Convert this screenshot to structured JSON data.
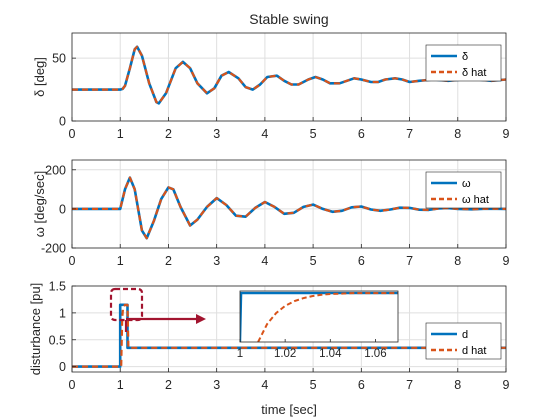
{
  "title": "Stable swing",
  "colors": {
    "actual": "#0072BD",
    "estimate": "#D95319",
    "callout": "#A2142F",
    "grid": "#DFDFDF",
    "axis": "#262626"
  },
  "chart_data": [
    {
      "type": "line",
      "title": "Stable swing",
      "xlabel": "",
      "ylabel": "δ [deg]",
      "xlim": [
        0,
        9
      ],
      "ylim": [
        0,
        70
      ],
      "xticks": [
        "0",
        "1",
        "2",
        "3",
        "4",
        "5",
        "6",
        "7",
        "8",
        "9"
      ],
      "yticks": [
        "0",
        "50"
      ],
      "ytick_values": [
        0,
        50
      ],
      "grid": true,
      "legend_position": "top-right",
      "series": [
        {
          "name": "δ",
          "style": "solid",
          "x": [
            0,
            1,
            1.05,
            1.1,
            1.2,
            1.3,
            1.35,
            1.45,
            1.6,
            1.75,
            1.8,
            1.95,
            2.15,
            2.3,
            2.45,
            2.6,
            2.8,
            2.95,
            3.1,
            3.25,
            3.45,
            3.6,
            3.75,
            3.9,
            4.05,
            4.25,
            4.4,
            4.55,
            4.7,
            4.9,
            5.05,
            5.2,
            5.35,
            5.55,
            5.7,
            5.85,
            6.0,
            6.2,
            6.35,
            6.5,
            6.7,
            6.85,
            7.0,
            7.2,
            7.5,
            7.8,
            8.1,
            8.4,
            8.7,
            9
          ],
          "y": [
            25,
            25,
            25.5,
            28,
            42,
            57,
            59,
            52,
            30,
            15,
            14,
            22,
            42,
            47,
            42,
            30,
            22,
            26,
            36,
            39,
            34,
            27,
            25,
            29,
            35,
            36,
            32,
            29,
            29,
            33,
            35,
            33,
            30,
            30,
            32,
            34,
            33,
            31,
            31,
            33,
            34,
            33,
            31,
            32,
            33,
            32,
            33,
            33,
            32,
            33
          ]
        },
        {
          "name": "δ hat",
          "style": "dashed",
          "x": [
            0,
            1,
            1.05,
            1.1,
            1.2,
            1.3,
            1.35,
            1.45,
            1.6,
            1.75,
            1.8,
            1.95,
            2.15,
            2.3,
            2.45,
            2.6,
            2.8,
            2.95,
            3.1,
            3.25,
            3.45,
            3.6,
            3.75,
            3.9,
            4.05,
            4.25,
            4.4,
            4.55,
            4.7,
            4.9,
            5.05,
            5.2,
            5.35,
            5.55,
            5.7,
            5.85,
            6.0,
            6.2,
            6.35,
            6.5,
            6.7,
            6.85,
            7.0,
            7.2,
            7.5,
            7.8,
            8.1,
            8.4,
            8.7,
            9
          ],
          "y": [
            25,
            25,
            25.5,
            28,
            42,
            57,
            59,
            52,
            30,
            15,
            14,
            22,
            42,
            47,
            42,
            30,
            22,
            26,
            36,
            39,
            34,
            27,
            25,
            29,
            35,
            36,
            32,
            29,
            29,
            33,
            35,
            33,
            30,
            30,
            32,
            34,
            33,
            31,
            31,
            33,
            34,
            33,
            31,
            32,
            33,
            32,
            33,
            33,
            32,
            33
          ]
        }
      ]
    },
    {
      "type": "line",
      "title": "",
      "xlabel": "",
      "ylabel": "ω [deg/sec]",
      "xlim": [
        0,
        9
      ],
      "ylim": [
        -200,
        250
      ],
      "xticks": [
        "0",
        "1",
        "2",
        "3",
        "4",
        "5",
        "6",
        "7",
        "8",
        "9"
      ],
      "yticks": [
        "-200",
        "0",
        "200"
      ],
      "ytick_values": [
        -200,
        0,
        200
      ],
      "grid": true,
      "legend_position": "top-right",
      "series": [
        {
          "name": "ω",
          "style": "solid",
          "x": [
            0,
            1,
            1.1,
            1.2,
            1.3,
            1.45,
            1.55,
            1.7,
            1.85,
            2.0,
            2.1,
            2.25,
            2.45,
            2.6,
            2.8,
            3.0,
            3.2,
            3.4,
            3.6,
            3.8,
            4.0,
            4.2,
            4.4,
            4.6,
            4.8,
            5.0,
            5.2,
            5.4,
            5.6,
            5.8,
            6.0,
            6.2,
            6.4,
            6.6,
            6.8,
            7.0,
            7.2,
            7.4,
            7.6,
            7.8,
            8.0,
            8.3,
            8.6,
            9
          ],
          "y": [
            0,
            0,
            100,
            160,
            100,
            -110,
            -150,
            -60,
            50,
            110,
            100,
            10,
            -85,
            -55,
            10,
            55,
            20,
            -35,
            -40,
            5,
            35,
            10,
            -25,
            -20,
            10,
            22,
            0,
            -15,
            -10,
            8,
            12,
            -3,
            -10,
            -3,
            6,
            5,
            -4,
            -5,
            2,
            4,
            0,
            -2,
            1,
            0
          ]
        },
        {
          "name": "ω hat",
          "style": "dashed",
          "x": [
            0,
            1,
            1.1,
            1.2,
            1.3,
            1.45,
            1.55,
            1.7,
            1.85,
            2.0,
            2.1,
            2.25,
            2.45,
            2.6,
            2.8,
            3.0,
            3.2,
            3.4,
            3.6,
            3.8,
            4.0,
            4.2,
            4.4,
            4.6,
            4.8,
            5.0,
            5.2,
            5.4,
            5.6,
            5.8,
            6.0,
            6.2,
            6.4,
            6.6,
            6.8,
            7.0,
            7.2,
            7.4,
            7.6,
            7.8,
            8.0,
            8.3,
            8.6,
            9
          ],
          "y": [
            0,
            0,
            100,
            160,
            100,
            -110,
            -150,
            -60,
            50,
            110,
            100,
            10,
            -85,
            -55,
            10,
            55,
            20,
            -35,
            -40,
            5,
            35,
            10,
            -25,
            -20,
            10,
            22,
            0,
            -15,
            -10,
            8,
            12,
            -3,
            -10,
            -3,
            6,
            5,
            -4,
            -5,
            2,
            4,
            0,
            -2,
            1,
            0
          ]
        }
      ]
    },
    {
      "type": "line",
      "title": "",
      "xlabel": "time [sec]",
      "ylabel": "disturbance [pu]",
      "xlim": [
        0,
        9
      ],
      "ylim": [
        -0.1,
        1.5
      ],
      "xticks": [
        "0",
        "1",
        "2",
        "3",
        "4",
        "5",
        "6",
        "7",
        "8",
        "9"
      ],
      "yticks": [
        "0",
        "0.5",
        "1",
        "1.5"
      ],
      "ytick_values": [
        0,
        0.5,
        1,
        1.5
      ],
      "grid": true,
      "legend_position": "bottom-right",
      "series": [
        {
          "name": "d",
          "style": "solid",
          "x": [
            0,
            1,
            1,
            1.15,
            1.15,
            9
          ],
          "y": [
            0,
            0,
            1.15,
            1.15,
            0.35,
            0.35
          ]
        },
        {
          "name": "d hat",
          "style": "dashed",
          "x": [
            0,
            1.02,
            1.04,
            1.06,
            1.1,
            1.15,
            1.17,
            1.25,
            9
          ],
          "y": [
            0,
            0,
            0.9,
            1.1,
            1.15,
            1.15,
            0.35,
            0.35,
            0.35
          ]
        }
      ],
      "inset": {
        "xlim": [
          1,
          1.07
        ],
        "ylim": [
          0,
          1.2
        ],
        "xticks": [
          "1",
          "1.02",
          "1.04",
          "1.06"
        ],
        "xtick_values": [
          1,
          1.02,
          1.04,
          1.06
        ],
        "series": [
          {
            "name": "d",
            "style": "solid",
            "x": [
              1,
              1.0005,
              1.07
            ],
            "y": [
              0,
              1.15,
              1.15
            ]
          },
          {
            "name": "d hat",
            "style": "dashed",
            "x": [
              1.008,
              1.012,
              1.016,
              1.02,
              1.024,
              1.028,
              1.032,
              1.036,
              1.04,
              1.045,
              1.05,
              1.06,
              1.07
            ],
            "y": [
              0,
              0.42,
              0.68,
              0.85,
              0.96,
              1.03,
              1.08,
              1.11,
              1.13,
              1.14,
              1.15,
              1.15,
              1.15
            ]
          }
        ]
      }
    }
  ]
}
